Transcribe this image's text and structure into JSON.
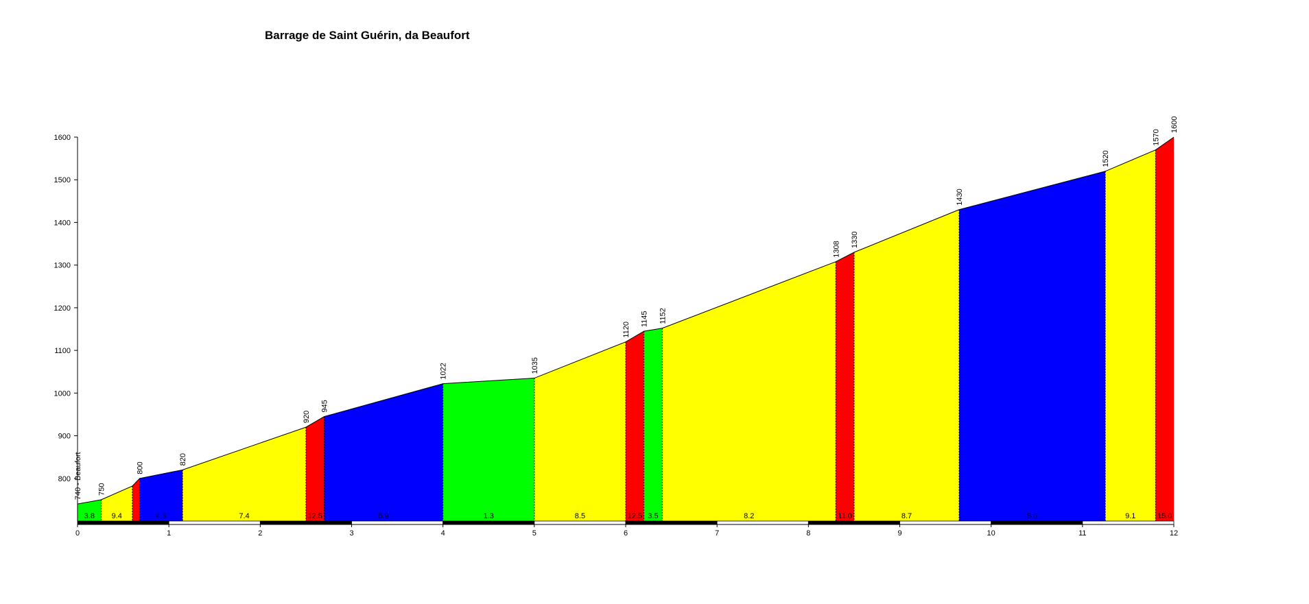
{
  "chart_data": {
    "type": "area",
    "title": "Barrage de Saint Guérin, da Beaufort",
    "xlabel": "",
    "ylabel": "",
    "xlim": [
      0,
      12
    ],
    "ylim": [
      700,
      1600
    ],
    "x_ticks": [
      0,
      1,
      2,
      3,
      4,
      5,
      6,
      7,
      8,
      9,
      10,
      11,
      12
    ],
    "y_ticks": [
      800,
      900,
      1000,
      1100,
      1200,
      1300,
      1400,
      1500,
      1600
    ],
    "start_label": "740 - Beaufort",
    "grade_colors": {
      "green": "#00ff00",
      "yellow": "#ffff00",
      "blue": "#0000ff",
      "red": "#ff0000"
    },
    "segments": [
      {
        "x0": 0.0,
        "x1": 0.26,
        "y0": 740,
        "y1": 750,
        "grade": "3.8",
        "color": "green"
      },
      {
        "x0": 0.26,
        "x1": 0.6,
        "y0": 750,
        "y1": 782,
        "grade": "9.4",
        "color": "yellow"
      },
      {
        "x0": 0.6,
        "x1": 0.68,
        "y0": 782,
        "y1": 800,
        "grade": "",
        "color": "red"
      },
      {
        "x0": 0.68,
        "x1": 1.15,
        "y0": 800,
        "y1": 820,
        "grade": "4.3",
        "color": "blue"
      },
      {
        "x0": 1.15,
        "x1": 2.5,
        "y0": 820,
        "y1": 920,
        "grade": "7.4",
        "color": "yellow"
      },
      {
        "x0": 2.5,
        "x1": 2.7,
        "y0": 920,
        "y1": 945,
        "grade": "12.5",
        "color": "red"
      },
      {
        "x0": 2.7,
        "x1": 4.0,
        "y0": 945,
        "y1": 1022,
        "grade": "5.9",
        "color": "blue"
      },
      {
        "x0": 4.0,
        "x1": 5.0,
        "y0": 1022,
        "y1": 1035,
        "grade": "1.3",
        "color": "green"
      },
      {
        "x0": 5.0,
        "x1": 6.0,
        "y0": 1035,
        "y1": 1120,
        "grade": "8.5",
        "color": "yellow"
      },
      {
        "x0": 6.0,
        "x1": 6.2,
        "y0": 1120,
        "y1": 1145,
        "grade": "12.5",
        "color": "red"
      },
      {
        "x0": 6.2,
        "x1": 6.4,
        "y0": 1145,
        "y1": 1152,
        "grade": "3.5",
        "color": "green"
      },
      {
        "x0": 6.4,
        "x1": 8.3,
        "y0": 1152,
        "y1": 1308,
        "grade": "8.2",
        "color": "yellow"
      },
      {
        "x0": 8.3,
        "x1": 8.5,
        "y0": 1308,
        "y1": 1330,
        "grade": "11.0",
        "color": "red"
      },
      {
        "x0": 8.5,
        "x1": 9.65,
        "y0": 1330,
        "y1": 1430,
        "grade": "8.7",
        "color": "yellow"
      },
      {
        "x0": 9.65,
        "x1": 11.25,
        "y0": 1430,
        "y1": 1520,
        "grade": "5.6",
        "color": "blue"
      },
      {
        "x0": 11.25,
        "x1": 11.8,
        "y0": 1520,
        "y1": 1570,
        "grade": "9.1",
        "color": "yellow"
      },
      {
        "x0": 11.8,
        "x1": 12.0,
        "y0": 1570,
        "y1": 1600,
        "grade": "15.0",
        "color": "red"
      }
    ],
    "elevation_labels": [
      {
        "x": 0.26,
        "y": 750,
        "text": "750"
      },
      {
        "x": 0.68,
        "y": 800,
        "text": "800"
      },
      {
        "x": 1.15,
        "y": 820,
        "text": "820"
      },
      {
        "x": 2.5,
        "y": 920,
        "text": "920"
      },
      {
        "x": 2.7,
        "y": 945,
        "text": "945"
      },
      {
        "x": 4.0,
        "y": 1022,
        "text": "1022"
      },
      {
        "x": 5.0,
        "y": 1035,
        "text": "1035"
      },
      {
        "x": 6.0,
        "y": 1120,
        "text": "1120"
      },
      {
        "x": 6.2,
        "y": 1145,
        "text": "1145"
      },
      {
        "x": 6.4,
        "y": 1152,
        "text": "1152"
      },
      {
        "x": 8.3,
        "y": 1308,
        "text": "1308"
      },
      {
        "x": 8.5,
        "y": 1330,
        "text": "1330"
      },
      {
        "x": 9.65,
        "y": 1430,
        "text": "1430"
      },
      {
        "x": 11.25,
        "y": 1520,
        "text": "1520"
      },
      {
        "x": 11.8,
        "y": 1570,
        "text": "1570"
      },
      {
        "x": 12.0,
        "y": 1600,
        "text": "1600"
      }
    ]
  }
}
